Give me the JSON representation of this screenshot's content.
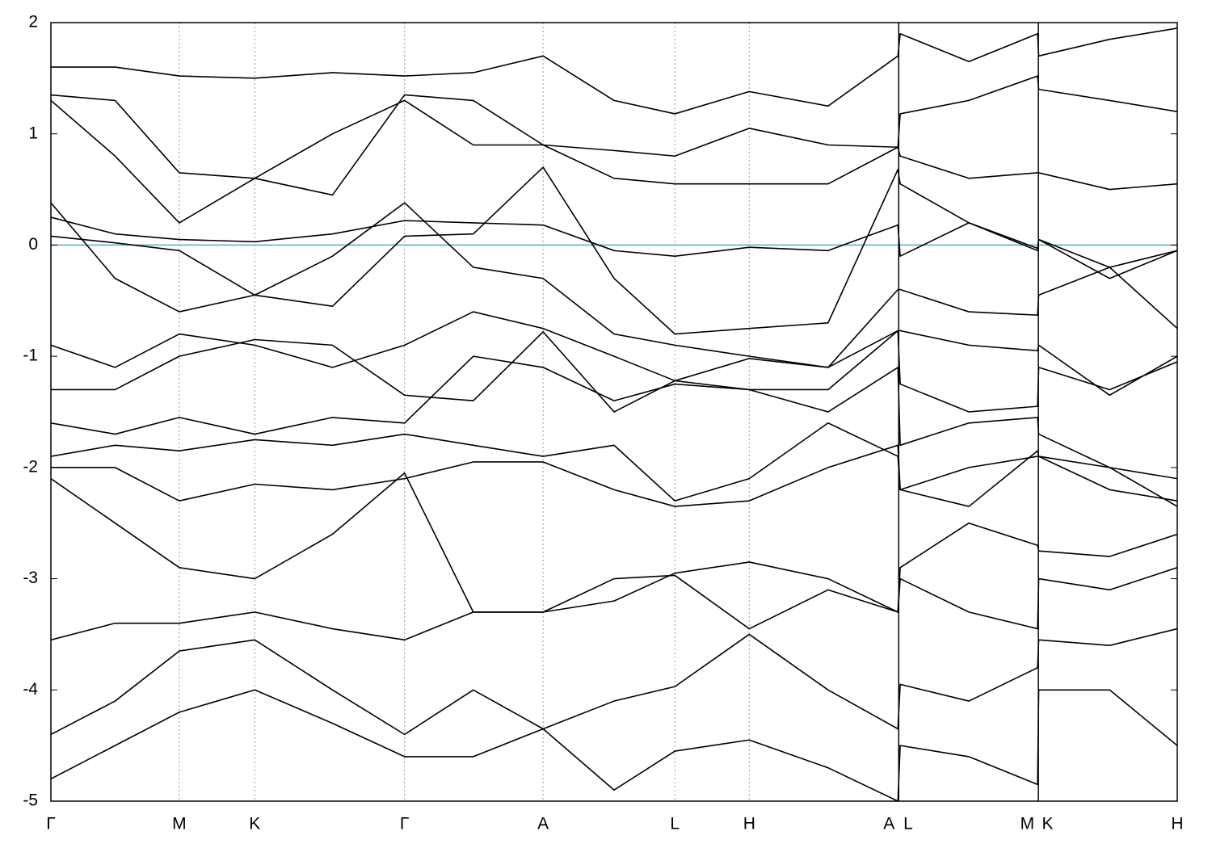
{
  "chart_data": {
    "type": "line",
    "x": [
      0,
      0.057,
      0.114,
      0.181,
      0.25,
      0.314,
      0.375,
      0.437,
      0.5,
      0.554,
      0.62,
      0.69,
      0.752,
      0.754,
      0.815,
      0.876,
      0.877,
      0.94,
      1.0
    ],
    "xlim": [
      0,
      1
    ],
    "xticks": [
      {
        "value": 0,
        "label": "Γ"
      },
      {
        "value": 0.114,
        "label": "M"
      },
      {
        "value": 0.181,
        "label": "K"
      },
      {
        "value": 0.314,
        "label": "Γ"
      },
      {
        "value": 0.437,
        "label": "A"
      },
      {
        "value": 0.554,
        "label": "L"
      },
      {
        "value": 0.62,
        "label": "H"
      },
      {
        "value": 0.752,
        "label": "A"
      },
      {
        "value": 0.754,
        "label": "L"
      },
      {
        "value": 0.876,
        "label": "M"
      },
      {
        "value": 0.877,
        "label": "K"
      },
      {
        "value": 1.0,
        "label": "H"
      }
    ],
    "ylim": [
      -5,
      2
    ],
    "yticks": [
      -5,
      -4,
      -3,
      -2,
      -1,
      0,
      1,
      2
    ],
    "xgrid": true,
    "reference_line": {
      "y": 0,
      "color": "#5fa8c8"
    },
    "series": [
      {
        "color": "#000000",
        "values": [
          0.25,
          0.1,
          0.05,
          0.03,
          0.1,
          0.22,
          0.2,
          0.18,
          -0.05,
          -0.1,
          -0.02,
          -0.05,
          0.18,
          -0.1,
          0.2,
          -0.05,
          0.05,
          -0.3,
          -0.05
        ]
      },
      {
        "color": "#000000",
        "values": [
          0.38,
          -0.3,
          -0.6,
          -0.45,
          -0.1,
          0.38,
          -0.2,
          -0.3,
          -0.8,
          -0.9,
          -1.0,
          -1.1,
          -0.4,
          -0.4,
          -0.6,
          -0.63,
          -0.45,
          -0.2,
          -0.75
        ]
      },
      {
        "color": "#000000",
        "values": [
          0.08,
          0.02,
          -0.05,
          -0.45,
          -0.55,
          0.08,
          0.1,
          0.7,
          -0.3,
          -0.8,
          -0.75,
          -0.7,
          0.68,
          0.55,
          0.2,
          -0.03,
          0.05,
          -0.2,
          -0.05
        ]
      },
      {
        "color": "#000000",
        "values": [
          1.3,
          0.8,
          0.2,
          0.6,
          1.0,
          1.3,
          0.9,
          0.9,
          0.6,
          0.55,
          0.55,
          0.55,
          0.88,
          0.8,
          0.6,
          0.65,
          0.65,
          0.5,
          0.55
        ]
      },
      {
        "color": "#000000",
        "values": [
          1.35,
          1.3,
          0.65,
          0.6,
          0.45,
          1.35,
          1.3,
          0.9,
          0.85,
          0.8,
          1.05,
          0.9,
          0.88,
          1.18,
          1.3,
          1.52,
          1.4,
          1.3,
          1.2
        ]
      },
      {
        "color": "#000000",
        "values": [
          1.6,
          1.6,
          1.52,
          1.5,
          1.55,
          1.52,
          1.55,
          1.7,
          1.3,
          1.18,
          1.38,
          1.25,
          1.7,
          1.9,
          1.65,
          1.9,
          1.7,
          1.85,
          1.95
        ]
      },
      {
        "color": "#000000",
        "values": [
          -0.9,
          -1.1,
          -0.8,
          -0.9,
          -1.1,
          -0.9,
          -0.6,
          -0.75,
          -1.0,
          -1.22,
          -1.02,
          -1.1,
          -0.77,
          -0.77,
          -0.9,
          -0.95,
          -0.9,
          -1.35,
          -1.0
        ]
      },
      {
        "color": "#000000",
        "values": [
          -1.3,
          -1.3,
          -1.0,
          -0.85,
          -0.9,
          -1.35,
          -1.4,
          -0.78,
          -1.5,
          -1.22,
          -1.3,
          -1.3,
          -0.77,
          -1.25,
          -1.5,
          -1.45,
          -1.1,
          -1.3,
          -1.05
        ]
      },
      {
        "color": "#000000",
        "values": [
          -1.6,
          -1.7,
          -1.55,
          -1.7,
          -1.55,
          -1.6,
          -1.0,
          -1.1,
          -1.4,
          -1.25,
          -1.3,
          -1.5,
          -1.1,
          -1.8,
          -1.6,
          -1.55,
          -1.7,
          -2.0,
          -2.1
        ]
      },
      {
        "color": "#000000",
        "values": [
          -1.9,
          -1.8,
          -1.85,
          -1.75,
          -1.8,
          -1.7,
          -1.8,
          -1.9,
          -1.8,
          -2.3,
          -2.1,
          -1.6,
          -1.9,
          -2.2,
          -2.0,
          -1.9,
          -1.9,
          -2.2,
          -2.3
        ]
      },
      {
        "color": "#000000",
        "values": [
          -2.0,
          -2.0,
          -2.3,
          -2.15,
          -2.2,
          -2.1,
          -1.95,
          -1.95,
          -2.2,
          -2.35,
          -2.3,
          -2.0,
          -1.8,
          -2.2,
          -2.35,
          -1.85,
          -1.9,
          -2.0,
          -2.35
        ]
      },
      {
        "color": "#000000",
        "values": [
          -2.1,
          -2.5,
          -2.9,
          -3.0,
          -2.6,
          -2.05,
          -3.3,
          -3.3,
          -3.2,
          -2.95,
          -2.85,
          -3.0,
          -3.3,
          -2.9,
          -2.5,
          -2.7,
          -2.75,
          -2.8,
          -2.6
        ]
      },
      {
        "color": "#000000",
        "values": [
          -3.55,
          -3.4,
          -3.4,
          -3.3,
          -3.45,
          -3.55,
          -3.3,
          -3.3,
          -3.0,
          -2.97,
          -3.45,
          -3.1,
          -3.3,
          -3.0,
          -3.3,
          -3.45,
          -3.0,
          -3.1,
          -2.9
        ]
      },
      {
        "color": "#000000",
        "values": [
          -4.4,
          -4.1,
          -3.65,
          -3.55,
          -4.0,
          -4.4,
          -4.0,
          -4.35,
          -4.1,
          -3.97,
          -3.5,
          -4.0,
          -4.35,
          -3.95,
          -4.1,
          -3.8,
          -3.55,
          -3.6,
          -3.45
        ]
      },
      {
        "color": "#000000",
        "values": [
          -4.8,
          -4.5,
          -4.2,
          -4.0,
          -4.3,
          -4.6,
          -4.6,
          -4.35,
          -4.9,
          -4.55,
          -4.45,
          -4.7,
          -5.0,
          -4.5,
          -4.6,
          -4.85,
          -4.0,
          -4.0,
          -4.5
        ]
      }
    ]
  }
}
